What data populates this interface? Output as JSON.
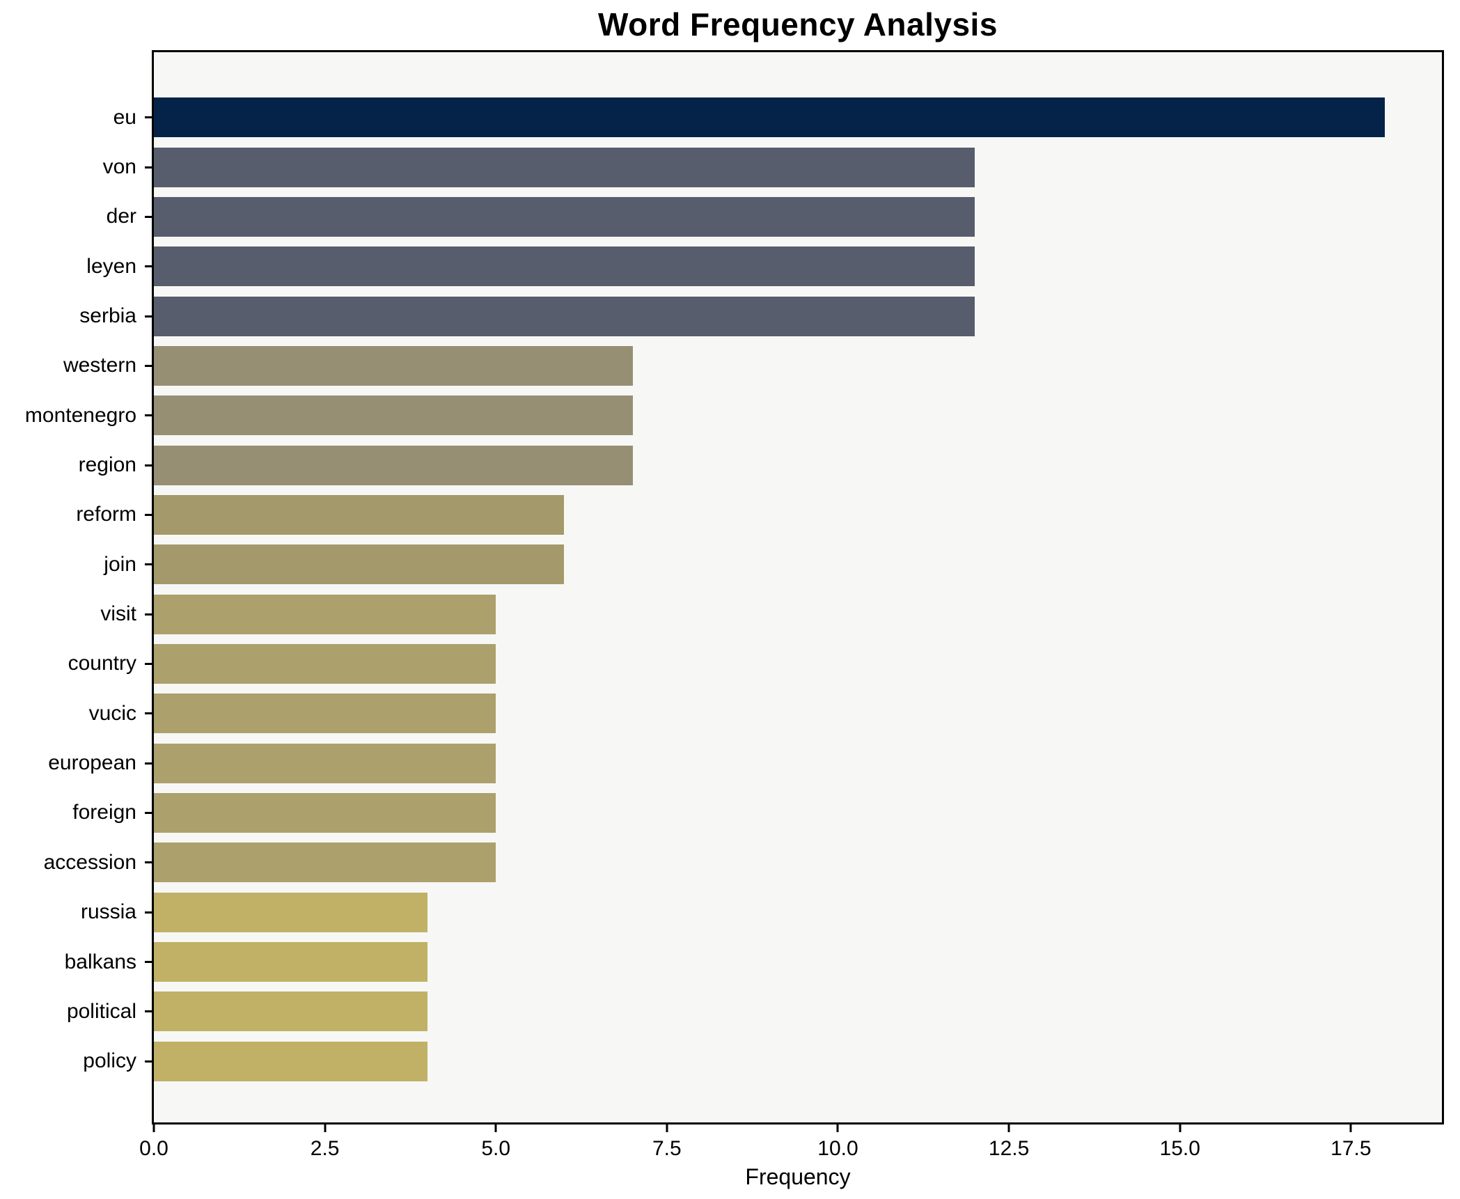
{
  "chart_data": {
    "type": "bar",
    "orientation": "horizontal",
    "title": "Word Frequency Analysis",
    "xlabel": "Frequency",
    "ylabel": "",
    "categories": [
      "eu",
      "von",
      "der",
      "leyen",
      "serbia",
      "western",
      "montenegro",
      "region",
      "reform",
      "join",
      "visit",
      "country",
      "vucic",
      "european",
      "foreign",
      "accession",
      "russia",
      "balkans",
      "political",
      "policy"
    ],
    "values": [
      18,
      12,
      12,
      12,
      12,
      7,
      7,
      7,
      6,
      6,
      5,
      5,
      5,
      5,
      5,
      5,
      4,
      4,
      4,
      4
    ],
    "bar_colors": [
      "#052349",
      "#575d6c",
      "#575d6c",
      "#575d6c",
      "#575d6c",
      "#968f74",
      "#968f74",
      "#968f74",
      "#a3996a",
      "#a3996a",
      "#aca06c",
      "#aca06c",
      "#aca06c",
      "#aca06c",
      "#aca06c",
      "#aca06c",
      "#c1b166",
      "#c1b166",
      "#c1b166",
      "#c1b166"
    ],
    "xlim": [
      0,
      18.83
    ],
    "xticks": [
      0,
      2.5,
      5,
      7.5,
      10,
      12.5,
      15,
      17.5
    ],
    "xtick_labels": [
      "0.0",
      "2.5",
      "5.0",
      "7.5",
      "10.0",
      "12.5",
      "15.0",
      "17.5"
    ],
    "grid": false,
    "legend": null,
    "plot_background": "#f7f7f5",
    "figure_background": "#ffffff",
    "spine_color": "#000000"
  }
}
